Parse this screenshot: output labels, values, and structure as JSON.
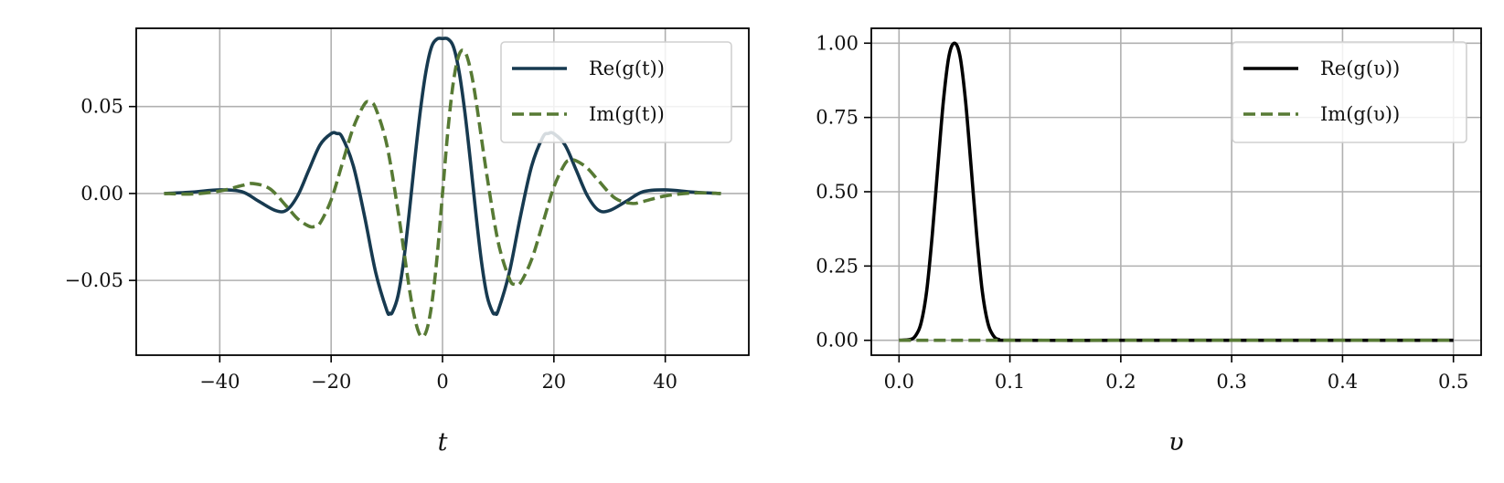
{
  "chart_data": [
    {
      "type": "line",
      "xlabel": "t",
      "ylabel": "",
      "xlim": [
        -55,
        55
      ],
      "ylim": [
        -0.093,
        0.095
      ],
      "xticks": [
        -40,
        -20,
        0,
        20,
        40
      ],
      "xtick_labels": [
        "−40",
        "−20",
        "0",
        "20",
        "40"
      ],
      "yticks": [
        -0.05,
        0.0,
        0.05
      ],
      "ytick_labels": [
        "−0.05",
        "0.00",
        "0.05"
      ],
      "grid": true,
      "legend_position": "top-right",
      "series": [
        {
          "name": "Re(g(t))",
          "style": "solid",
          "color": "#173a50",
          "x": [
            -50,
            -45,
            -40,
            -36,
            -33,
            -30,
            -28,
            -26,
            -24,
            -22,
            -20,
            -19,
            -18,
            -16,
            -14,
            -12,
            -10,
            -9.5,
            -9,
            -8,
            -7,
            -6,
            -5,
            -4,
            -3,
            -2,
            -1,
            0,
            1,
            2,
            3,
            4,
            5,
            6,
            7,
            8,
            9,
            9.5,
            10,
            12,
            14,
            16,
            18,
            19,
            20,
            22,
            24,
            26,
            28,
            30,
            33,
            36,
            40,
            45,
            50
          ],
          "y": [
            0,
            0.0008,
            0.0021,
            0.001,
            -0.0045,
            -0.0098,
            -0.0096,
            -0.0012,
            0.0135,
            0.0279,
            0.0344,
            0.0345,
            0.0323,
            0.0157,
            -0.0131,
            -0.0454,
            -0.0673,
            -0.0689,
            -0.0683,
            -0.0589,
            -0.0393,
            -0.0118,
            0.0188,
            0.0471,
            0.0697,
            0.084,
            0.0888,
            0.0891,
            0.0888,
            0.084,
            0.0697,
            0.0471,
            0.0188,
            -0.0118,
            -0.0393,
            -0.0589,
            -0.0683,
            -0.0689,
            -0.0673,
            -0.0454,
            -0.0131,
            0.0157,
            0.0323,
            0.0345,
            0.0344,
            0.0279,
            0.0135,
            -0.0012,
            -0.0096,
            -0.0098,
            -0.0045,
            0.001,
            0.0021,
            0.0008,
            0
          ]
        },
        {
          "name": "Im(g(t))",
          "style": "dashed",
          "color": "#577a34",
          "x": [
            -50,
            -45,
            -40,
            -36,
            -34,
            -31,
            -28,
            -26,
            -24,
            -23,
            -22,
            -20,
            -18,
            -16,
            -14,
            -13,
            -12,
            -10,
            -8,
            -6,
            -5,
            -4,
            -3,
            -2,
            -1,
            0,
            1,
            2,
            3,
            4,
            5,
            6,
            8,
            10,
            12,
            13,
            14,
            16,
            18,
            20,
            22,
            23,
            24,
            26,
            28,
            31,
            34,
            36,
            40,
            45,
            50
          ],
          "y": [
            0,
            -0.0003,
            0.0014,
            0.0046,
            0.0057,
            0.0027,
            -0.0074,
            -0.0146,
            -0.0188,
            -0.019,
            -0.0171,
            -0.0037,
            0.0172,
            0.038,
            0.0514,
            0.0523,
            0.049,
            0.028,
            -0.0098,
            -0.0537,
            -0.0716,
            -0.0816,
            -0.08,
            -0.0652,
            -0.0373,
            0,
            0.0373,
            0.0652,
            0.08,
            0.0816,
            0.0716,
            0.0537,
            0.0098,
            -0.028,
            -0.049,
            -0.0523,
            -0.0514,
            -0.038,
            -0.0172,
            0.0037,
            0.0171,
            0.019,
            0.0188,
            0.0146,
            0.0074,
            -0.0027,
            -0.0057,
            -0.0046,
            -0.0014,
            0.0003,
            0
          ]
        }
      ]
    },
    {
      "type": "line",
      "xlabel": "υ",
      "ylabel": "",
      "xlim": [
        -0.025,
        0.525
      ],
      "ylim": [
        -0.05,
        1.05
      ],
      "xticks": [
        0.0,
        0.1,
        0.2,
        0.3,
        0.4,
        0.5
      ],
      "xtick_labels": [
        "0.0",
        "0.1",
        "0.2",
        "0.3",
        "0.4",
        "0.5"
      ],
      "yticks": [
        0.0,
        0.25,
        0.5,
        0.75,
        1.0
      ],
      "ytick_labels": [
        "0.00",
        "0.25",
        "0.50",
        "0.75",
        "1.00"
      ],
      "grid": true,
      "legend_position": "top-right",
      "series": [
        {
          "name": "Re(g(υ))",
          "style": "solid",
          "color": "#000000",
          "x": [
            0,
            0.01,
            0.015,
            0.02,
            0.025,
            0.03,
            0.035,
            0.04,
            0.045,
            0.05,
            0.055,
            0.06,
            0.065,
            0.07,
            0.075,
            0.08,
            0.085,
            0.09,
            0.1,
            0.2,
            0.3,
            0.4,
            0.5
          ],
          "y": [
            3e-05,
            0.003,
            0.016,
            0.06,
            0.168,
            0.356,
            0.584,
            0.805,
            0.956,
            1.0,
            0.956,
            0.805,
            0.584,
            0.356,
            0.168,
            0.06,
            0.016,
            0.003,
            0,
            0,
            0,
            0,
            0
          ]
        },
        {
          "name": "Im(g(υ))",
          "style": "dashed",
          "color": "#577a34",
          "x": [
            0,
            0.5
          ],
          "y": [
            0,
            0
          ]
        }
      ]
    }
  ]
}
